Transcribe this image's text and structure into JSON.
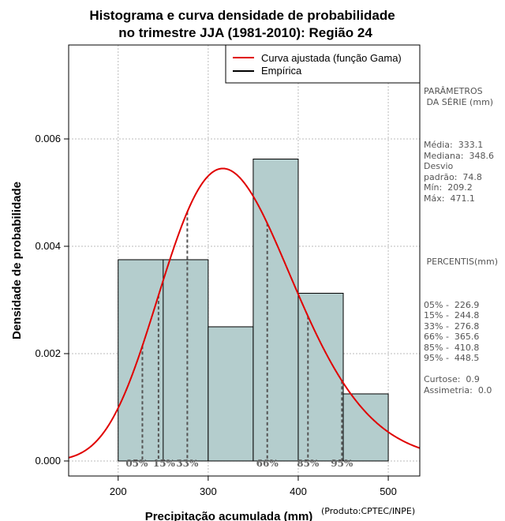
{
  "chart_data": {
    "type": "bar",
    "title": [
      "Histograma e curva densidade de probabilidade",
      "no trimestre JJA (1981-2010): Região 24"
    ],
    "xlabel": "Precipitação acumulada (mm)",
    "ylabel": "Densidade de probabilidade",
    "credit": "(Produto:CPTEC/INPE)",
    "xlim": [
      145,
      535
    ],
    "ylim": [
      -0.00028,
      0.00775
    ],
    "xticks": [
      200,
      300,
      400,
      500
    ],
    "yticks": [
      0.0,
      0.002,
      0.004,
      0.006
    ],
    "ytick_labels": [
      "0.000",
      "0.002",
      "0.004",
      "0.006"
    ],
    "grid": true,
    "bins": [
      {
        "x0": 200,
        "x1": 300,
        "density": 0.00375
      },
      {
        "x0": 300,
        "x1": 350,
        "density": 0.0025
      },
      {
        "x0": 350,
        "x1": 400,
        "density": 0.005625
      },
      {
        "x0": 400,
        "x1": 450,
        "density": 0.003125
      },
      {
        "x0": 450,
        "x1": 500,
        "density": 0.00125
      }
    ],
    "inner_bin_edge": 250,
    "gamma_curve": {
      "name": "Curva ajustada (função Gama)",
      "color": "#e00000",
      "mean": 333.1,
      "sd": 74.8
    },
    "legend": [
      "Curva ajustada (função Gama)",
      "Empírica"
    ],
    "legend_position": "top-right",
    "percentiles": [
      {
        "label": "05%",
        "value": 226.9
      },
      {
        "label": "15%",
        "value": 244.8
      },
      {
        "label": "33%",
        "value": 276.8
      },
      {
        "label": "66%",
        "value": 365.6
      },
      {
        "label": "85%",
        "value": 410.8
      },
      {
        "label": "95%",
        "value": 448.5
      }
    ]
  },
  "stats_panel": {
    "title": "PARÂMETROS\n DA SÉRIE (mm)",
    "body": "Média:  333.1\nMediana:  348.6\nDesvio\npadrão:  74.8\nMín:  209.2\nMáx:  471.1"
  },
  "percentis_panel": {
    "title": " PERCENTIS(mm)",
    "body": "05% -  226.9\n15% -  244.8\n33% -  276.8\n66% -  365.6\n85% -  410.8\n95% -  448.5\n\nCurtose:  0.9\nAssimetria:  0.0"
  },
  "colors": {
    "bar_fill": "#b4cdcd",
    "curve": "#e00000",
    "grid": "#bbbbbb",
    "pct_line": "#555555",
    "pct_label": "#666666"
  }
}
